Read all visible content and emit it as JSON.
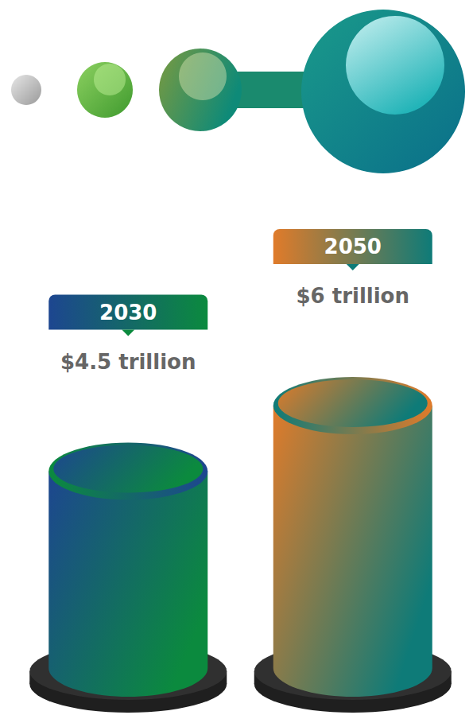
{
  "chart_data": {
    "type": "bar",
    "categories": [
      "2030",
      "2050"
    ],
    "values": [
      4.5,
      6
    ],
    "value_labels": [
      "$4.5 trillion",
      "$6 trillion"
    ],
    "colors": [
      "#0b8a3e",
      "#0e7b78"
    ],
    "ylim": [
      0,
      6
    ],
    "data_labels": true,
    "tick_labels": false
  }
}
